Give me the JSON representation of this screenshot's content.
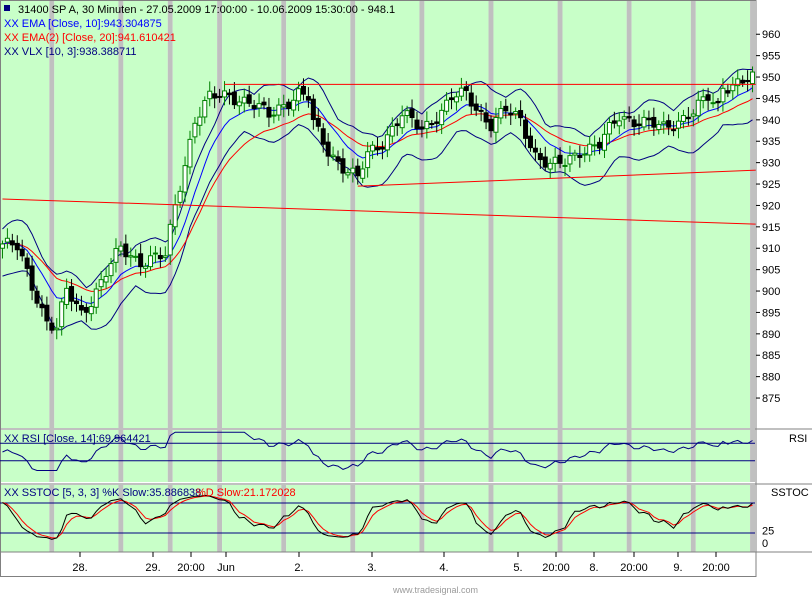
{
  "chart_data": {
    "type": "candlestick",
    "header": {
      "main": "31400  SP A, 30 Minuten - 27.05.2009 17:00:00 - 10.06.2009 15:30:00 - 948.1",
      "ema10": "XX EMA [Close, 10]:943.304875",
      "ema20": "XX EMA(2) [Close, 20]:941.610421",
      "vlx": "XX VLX [10, 3]:938.388711",
      "rsi": "XX RSI [Close, 14]:69.964421",
      "sstoc_k": "XX SSTOC [5, 3, 3] %K Slow:35.886838",
      "sstoc_d": "%D Slow:21.172028"
    },
    "panel_names": {
      "rsi": "RSI",
      "sstoc": "SSTOC"
    },
    "price_axis": {
      "ylim": [
        868,
        968
      ],
      "ticks": [
        875,
        880,
        885,
        890,
        895,
        900,
        905,
        910,
        915,
        920,
        925,
        930,
        935,
        940,
        945,
        950,
        955,
        960
      ]
    },
    "sstoc_axis": {
      "ticks": [
        0,
        25
      ]
    },
    "x_axis_labels": [
      "28.",
      "29.",
      "20:00",
      "Jun",
      "2.",
      "3.",
      "4.",
      "5.",
      "20:00",
      "8.",
      "20:00",
      "9.",
      "20:00"
    ],
    "watermark": "www.tradesignal.com",
    "colors": {
      "up": "#008000",
      "down": "#000000",
      "ema10": "#0000ff",
      "ema20": "#ff0000",
      "vlx": "#000080",
      "trend": "#ff0000",
      "session": "#c8ffc8",
      "gap": "#c0c0c0"
    },
    "trendlines": [
      {
        "from": [
          0,
          921.5
        ],
        "to": [
          165,
          915
        ]
      },
      {
        "from": [
          45,
          948.3
        ],
        "to": [
          165,
          948.3
        ]
      },
      {
        "from": [
          72,
          924.5
        ],
        "to": [
          165,
          929
        ]
      }
    ],
    "pattern": [
      {
        "len": 11,
        "wk": 10,
        "start": 908,
        "end": 905
      },
      {
        "len": 14,
        "wk": 13,
        "start": 905,
        "end": 896
      },
      {
        "len": 10,
        "wk": 9,
        "start": 896,
        "end": 907
      },
      {
        "len": 10,
        "wk": 9,
        "start": 907,
        "end": 920
      },
      {
        "len": 13,
        "wk": 12,
        "start": 920,
        "end": 945
      },
      {
        "len": 14,
        "wk": 13,
        "start": 945,
        "end": 947
      },
      {
        "len": 14,
        "wk": 13,
        "start": 947,
        "end": 929
      },
      {
        "len": 14,
        "wk": 13,
        "start": 929,
        "end": 938
      },
      {
        "len": 14,
        "wk": 13,
        "start": 938,
        "end": 942
      },
      {
        "len": 14,
        "wk": 13,
        "start": 942,
        "end": 930
      },
      {
        "len": 13,
        "wk": 12,
        "start": 930,
        "end": 941
      },
      {
        "len": 12,
        "wk": 11,
        "start": 941,
        "end": 947
      }
    ],
    "key_points": [
      {
        "i": 0,
        "v": 911
      },
      {
        "i": 3,
        "v": 910
      },
      {
        "i": 9,
        "v": 893
      },
      {
        "i": 11,
        "v": 891
      },
      {
        "i": 13,
        "v": 900
      },
      {
        "i": 16,
        "v": 895
      },
      {
        "i": 18,
        "v": 898
      },
      {
        "i": 21,
        "v": 904
      },
      {
        "i": 24,
        "v": 910
      },
      {
        "i": 28,
        "v": 907
      },
      {
        "i": 33,
        "v": 908
      },
      {
        "i": 35,
        "v": 920
      },
      {
        "i": 39,
        "v": 940
      },
      {
        "i": 42,
        "v": 945
      },
      {
        "i": 46,
        "v": 946
      },
      {
        "i": 50,
        "v": 944
      },
      {
        "i": 54,
        "v": 941
      },
      {
        "i": 56,
        "v": 943
      },
      {
        "i": 60,
        "v": 946
      },
      {
        "i": 62,
        "v": 945
      },
      {
        "i": 63,
        "v": 939
      },
      {
        "i": 66,
        "v": 933
      },
      {
        "i": 69,
        "v": 929
      },
      {
        "i": 72,
        "v": 926
      },
      {
        "i": 74,
        "v": 932
      },
      {
        "i": 77,
        "v": 935
      },
      {
        "i": 81,
        "v": 941
      },
      {
        "i": 85,
        "v": 938
      },
      {
        "i": 89,
        "v": 942
      },
      {
        "i": 91,
        "v": 945
      },
      {
        "i": 94,
        "v": 946
      },
      {
        "i": 96,
        "v": 943
      },
      {
        "i": 99,
        "v": 939
      },
      {
        "i": 102,
        "v": 942
      },
      {
        "i": 105,
        "v": 940
      },
      {
        "i": 108,
        "v": 932
      },
      {
        "i": 111,
        "v": 929
      },
      {
        "i": 114,
        "v": 930
      },
      {
        "i": 117,
        "v": 933
      },
      {
        "i": 121,
        "v": 934
      },
      {
        "i": 125,
        "v": 941
      },
      {
        "i": 128,
        "v": 940
      },
      {
        "i": 131,
        "v": 939
      },
      {
        "i": 134,
        "v": 938
      },
      {
        "i": 137,
        "v": 940
      },
      {
        "i": 140,
        "v": 942
      },
      {
        "i": 143,
        "v": 945
      },
      {
        "i": 145,
        "v": 943
      },
      {
        "i": 146,
        "v": 948
      }
    ],
    "rsi_levels": [
      30,
      70
    ],
    "sstoc_levels": [
      20,
      80
    ]
  }
}
